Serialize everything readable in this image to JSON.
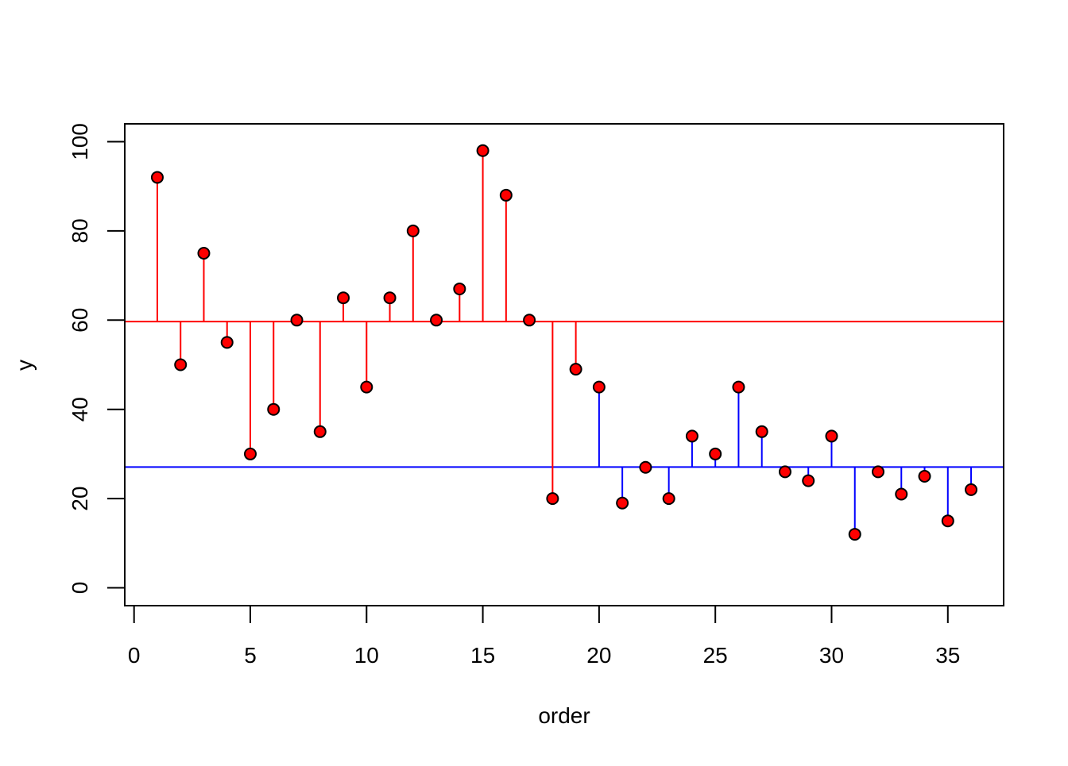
{
  "chart_data": {
    "type": "stem",
    "x_label": "order",
    "y_label": "y",
    "x": [
      1,
      2,
      3,
      4,
      5,
      6,
      7,
      8,
      9,
      10,
      11,
      12,
      13,
      14,
      15,
      16,
      17,
      18,
      19,
      20,
      21,
      22,
      23,
      24,
      25,
      26,
      27,
      28,
      29,
      30,
      31,
      32,
      33,
      34,
      35,
      36
    ],
    "values": [
      92,
      50,
      75,
      55,
      30,
      40,
      60,
      35,
      65,
      45,
      65,
      80,
      60,
      67,
      98,
      88,
      60,
      20,
      49,
      45,
      19,
      27,
      20,
      34,
      30,
      45,
      35,
      26,
      24,
      34,
      12,
      26,
      21,
      25,
      15,
      22
    ],
    "point_color": "#ff0000",
    "segments": [
      {
        "from": 1,
        "to": 19,
        "mean": 59.68,
        "color": "#ff0000"
      },
      {
        "from": 20,
        "to": 36,
        "mean": 27.06,
        "color": "#0000ff"
      }
    ],
    "xlim": [
      -0.4,
      37.4
    ],
    "ylim": [
      -4,
      104
    ],
    "xticks": [
      0,
      5,
      10,
      15,
      20,
      25,
      30,
      35
    ],
    "yticks": [
      0,
      20,
      40,
      60,
      80,
      100
    ]
  }
}
